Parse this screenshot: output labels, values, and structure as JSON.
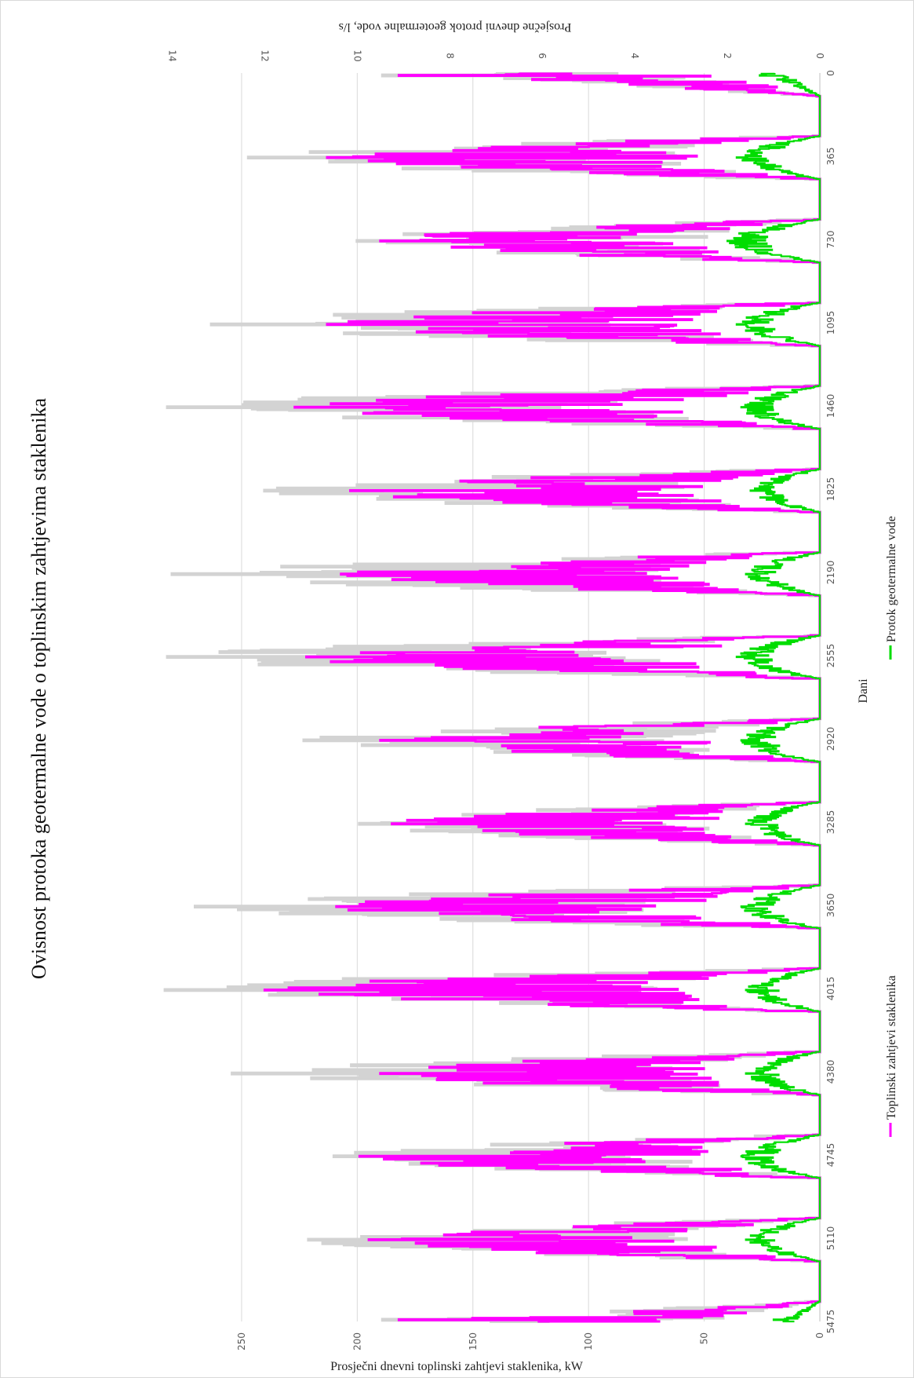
{
  "chart_data": {
    "type": "line",
    "title": "Ovisnost protoka geotermalne vode o toplinskim zahtjevima staklenika",
    "xlabel": "Dani",
    "ylabel": "Prosječni dnevni toplinski zahtjevi staklenika, kW",
    "y2label": "Prosječne dnevni protok geotermalne vode, l/s",
    "x_ticks": [
      "0",
      "365",
      "730",
      "1095",
      "1460",
      "1825",
      "2190",
      "2555",
      "2920",
      "3285",
      "3650",
      "4015",
      "4380",
      "4745",
      "5110",
      "5475"
    ],
    "xlim": [
      0,
      5475
    ],
    "y_ticks": [
      "0",
      "50",
      "100",
      "150",
      "200",
      "250"
    ],
    "ylim": [
      0,
      290
    ],
    "y2_ticks": [
      "0",
      "2",
      "4",
      "6",
      "8",
      "10",
      "12",
      "14"
    ],
    "y2lim": [
      0,
      14.5
    ],
    "grid": true,
    "orientation": "rotated-90-clockwise",
    "legend_position": "bottom",
    "series": [
      {
        "name": "Toplinski zahtjevi staklenika",
        "color": "#ff00ff",
        "axis": "left",
        "season_peaks": [
          {
            "start": 0,
            "end": 100,
            "peak": 182
          },
          {
            "start": 275,
            "end": 465,
            "peak": 213
          },
          {
            "start": 640,
            "end": 830,
            "peak": 190
          },
          {
            "start": 1005,
            "end": 1195,
            "peak": 213
          },
          {
            "start": 1370,
            "end": 1560,
            "peak": 227
          },
          {
            "start": 1735,
            "end": 1925,
            "peak": 203
          },
          {
            "start": 2100,
            "end": 2290,
            "peak": 207
          },
          {
            "start": 2465,
            "end": 2655,
            "peak": 222
          },
          {
            "start": 2830,
            "end": 3020,
            "peak": 190
          },
          {
            "start": 3195,
            "end": 3385,
            "peak": 185
          },
          {
            "start": 3560,
            "end": 3750,
            "peak": 209
          },
          {
            "start": 3925,
            "end": 4115,
            "peak": 240
          },
          {
            "start": 4290,
            "end": 4480,
            "peak": 190
          },
          {
            "start": 4655,
            "end": 4845,
            "peak": 199
          },
          {
            "start": 5020,
            "end": 5210,
            "peak": 195
          },
          {
            "start": 5385,
            "end": 5475,
            "peak": 182
          }
        ]
      },
      {
        "name": "Protok geotermalne vode",
        "color": "#00dd00",
        "axis": "right",
        "season_peaks": [
          {
            "start": 0,
            "end": 100,
            "peak": 1.3
          },
          {
            "start": 275,
            "end": 465,
            "peak": 1.8
          },
          {
            "start": 640,
            "end": 830,
            "peak": 2.0
          },
          {
            "start": 1005,
            "end": 1195,
            "peak": 1.8
          },
          {
            "start": 1370,
            "end": 1560,
            "peak": 1.7
          },
          {
            "start": 1735,
            "end": 1925,
            "peak": 1.5
          },
          {
            "start": 2100,
            "end": 2290,
            "peak": 1.6
          },
          {
            "start": 2465,
            "end": 2655,
            "peak": 1.8
          },
          {
            "start": 2830,
            "end": 3020,
            "peak": 1.7
          },
          {
            "start": 3195,
            "end": 3385,
            "peak": 1.6
          },
          {
            "start": 3560,
            "end": 3750,
            "peak": 1.7
          },
          {
            "start": 3925,
            "end": 4115,
            "peak": 1.6
          },
          {
            "start": 4290,
            "end": 4480,
            "peak": 1.6
          },
          {
            "start": 4655,
            "end": 4845,
            "peak": 1.7
          },
          {
            "start": 5020,
            "end": 5210,
            "peak": 1.6
          },
          {
            "start": 5385,
            "end": 5475,
            "peak": 1.0
          }
        ]
      },
      {
        "name": "",
        "color": "#d3d3d3",
        "axis": "left",
        "season_peaks": [
          {
            "start": 0,
            "end": 100,
            "peak": 189
          },
          {
            "start": 275,
            "end": 465,
            "peak": 247
          },
          {
            "start": 640,
            "end": 830,
            "peak": 200
          },
          {
            "start": 1005,
            "end": 1195,
            "peak": 263
          },
          {
            "start": 1370,
            "end": 1560,
            "peak": 282
          },
          {
            "start": 1735,
            "end": 1925,
            "peak": 240
          },
          {
            "start": 2100,
            "end": 2290,
            "peak": 280
          },
          {
            "start": 2465,
            "end": 2655,
            "peak": 282
          },
          {
            "start": 2830,
            "end": 3020,
            "peak": 223
          },
          {
            "start": 3195,
            "end": 3385,
            "peak": 199
          },
          {
            "start": 3560,
            "end": 3750,
            "peak": 270
          },
          {
            "start": 3925,
            "end": 4115,
            "peak": 283
          },
          {
            "start": 4290,
            "end": 4480,
            "peak": 254
          },
          {
            "start": 4655,
            "end": 4845,
            "peak": 210
          },
          {
            "start": 5020,
            "end": 5210,
            "peak": 221
          },
          {
            "start": 5385,
            "end": 5475,
            "peak": 189
          }
        ]
      }
    ]
  }
}
